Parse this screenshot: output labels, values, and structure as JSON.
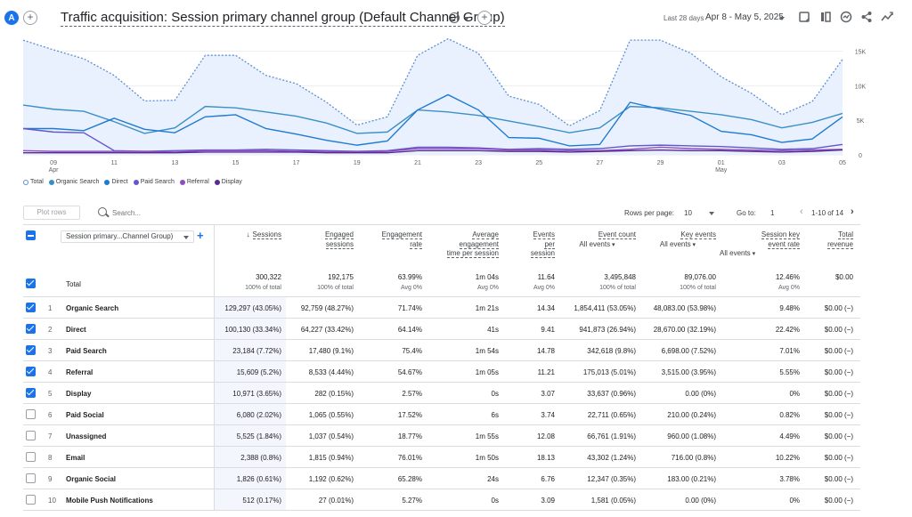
{
  "header": {
    "avatar_letter": "A",
    "title": "Traffic acquisition: Session primary channel group (Default Channel Group)",
    "date_label": "Last 28 days",
    "date_range": "Apr 8 - May 5, 2025",
    "icons": [
      "add-icon",
      "check-circle-icon",
      "chevron-down-icon",
      "add-comparison-icon",
      "report-icon",
      "compare-columns-icon",
      "insights-icon",
      "share-icon",
      "trend-icon"
    ]
  },
  "chart_data": {
    "type": "line",
    "x": [
      "Apr 8",
      "Apr 9",
      "Apr 10",
      "Apr 11",
      "Apr 12",
      "Apr 13",
      "Apr 14",
      "Apr 15",
      "Apr 16",
      "Apr 17",
      "Apr 18",
      "Apr 19",
      "Apr 20",
      "Apr 21",
      "Apr 22",
      "Apr 23",
      "Apr 24",
      "Apr 25",
      "Apr 26",
      "Apr 27",
      "Apr 28",
      "Apr 29",
      "Apr 30",
      "May 1",
      "May 2",
      "May 3",
      "May 4",
      "May 5"
    ],
    "x_tick_labels": [
      "09\nApr",
      "11",
      "13",
      "15",
      "17",
      "19",
      "21",
      "23",
      "25",
      "27",
      "29",
      "01\nMay",
      "03",
      "05"
    ],
    "y_tick_labels": [
      "0",
      "5K",
      "10K",
      "15K"
    ],
    "ylim": [
      0,
      17000
    ],
    "series": [
      {
        "name": "Total",
        "color": "#5b8fd6",
        "values": [
          16600,
          15200,
          13900,
          11500,
          7800,
          7900,
          14400,
          14400,
          11500,
          10300,
          7600,
          4300,
          5500,
          14400,
          16800,
          14700,
          8500,
          7300,
          4200,
          6400,
          16600,
          16600,
          14700,
          11300,
          8900,
          5800,
          7700,
          13800
        ]
      },
      {
        "name": "Organic Search",
        "color": "#3a8fc7",
        "values": [
          7200,
          6600,
          6300,
          4800,
          3100,
          3900,
          7000,
          6800,
          6200,
          5600,
          4600,
          3100,
          3300,
          6500,
          6200,
          5700,
          4900,
          4100,
          3200,
          3900,
          7000,
          6800,
          6300,
          5800,
          5100,
          3900,
          4700,
          6000
        ]
      },
      {
        "name": "Direct",
        "color": "#1f7ad1",
        "values": [
          3800,
          3800,
          3500,
          5300,
          3700,
          3200,
          5500,
          5800,
          3800,
          3000,
          2100,
          1400,
          2000,
          6500,
          8700,
          6500,
          2500,
          2400,
          1300,
          1500,
          7600,
          6600,
          5700,
          3400,
          2900,
          1800,
          2300,
          5500
        ]
      },
      {
        "name": "Paid Search",
        "color": "#6357c9",
        "values": [
          3800,
          3300,
          3200,
          600,
          500,
          600,
          700,
          700,
          800,
          700,
          600,
          500,
          600,
          1100,
          1100,
          1000,
          800,
          900,
          800,
          900,
          1300,
          1400,
          1300,
          1200,
          1000,
          800,
          900,
          1500
        ]
      },
      {
        "name": "Referral",
        "color": "#8b4fc2",
        "values": [
          600,
          500,
          500,
          500,
          500,
          400,
          600,
          600,
          600,
          500,
          500,
          400,
          500,
          900,
          900,
          900,
          700,
          700,
          600,
          600,
          800,
          1100,
          900,
          800,
          700,
          600,
          700,
          800
        ]
      },
      {
        "name": "Display",
        "color": "#5c2a8f",
        "values": [
          300,
          300,
          300,
          300,
          300,
          300,
          400,
          400,
          400,
          400,
          300,
          300,
          300,
          600,
          600,
          600,
          500,
          500,
          400,
          500,
          600,
          700,
          600,
          600,
          500,
          400,
          500,
          700
        ]
      }
    ]
  },
  "controls": {
    "plot_rows": "Plot rows",
    "search_placeholder": "Search...",
    "rows_per_page_label": "Rows per page:",
    "rows_per_page_value": "10",
    "goto_label": "Go to:",
    "goto_value": "1",
    "page_range": "1-10 of 14"
  },
  "table": {
    "dimension": "Session primary...Channel Group)",
    "columns": [
      {
        "l1": "Sessions",
        "l2": "",
        "l3": "",
        "sort": "↓"
      },
      {
        "l1": "Engaged",
        "l2": "sessions",
        "l3": ""
      },
      {
        "l1": "Engagement",
        "l2": "rate",
        "l3": ""
      },
      {
        "l1": "Average",
        "l2": "engagement",
        "l3": "time per session"
      },
      {
        "l1": "Events",
        "l2": "per",
        "l3": "session"
      },
      {
        "l1": "Event count",
        "l2": "All events",
        "l3": ""
      },
      {
        "l1": "Key events",
        "l2": "All events",
        "l3": ""
      },
      {
        "l1": "Session key",
        "l2": "event rate",
        "l3": "All events"
      },
      {
        "l1": "Total",
        "l2": "revenue",
        "l3": ""
      }
    ],
    "total_label": "Total",
    "totals": [
      {
        "v": "300,322",
        "s": "100% of total"
      },
      {
        "v": "192,175",
        "s": "100% of total"
      },
      {
        "v": "63.99%",
        "s": "Avg 0%"
      },
      {
        "v": "1m 04s",
        "s": "Avg 0%"
      },
      {
        "v": "11.64",
        "s": "Avg 0%"
      },
      {
        "v": "3,495,848",
        "s": "100% of total"
      },
      {
        "v": "89,076.00",
        "s": "100% of total"
      },
      {
        "v": "12.46%",
        "s": "Avg 0%"
      },
      {
        "v": "$0.00",
        "s": ""
      }
    ],
    "rows": [
      {
        "n": "1",
        "name": "Organic Search",
        "checked": true,
        "cells": [
          "129,297 (43.05%)",
          "92,759 (48.27%)",
          "71.74%",
          "1m 21s",
          "14.34",
          "1,854,411 (53.05%)",
          "48,083.00 (53.98%)",
          "9.48%",
          "$0.00 (−)"
        ]
      },
      {
        "n": "2",
        "name": "Direct",
        "checked": true,
        "cells": [
          "100,130 (33.34%)",
          "64,227 (33.42%)",
          "64.14%",
          "41s",
          "9.41",
          "941,873 (26.94%)",
          "28,670.00 (32.19%)",
          "22.42%",
          "$0.00 (−)"
        ]
      },
      {
        "n": "3",
        "name": "Paid Search",
        "checked": true,
        "cells": [
          "23,184 (7.72%)",
          "17,480 (9.1%)",
          "75.4%",
          "1m 54s",
          "14.78",
          "342,618 (9.8%)",
          "6,698.00 (7.52%)",
          "7.01%",
          "$0.00 (−)"
        ]
      },
      {
        "n": "4",
        "name": "Referral",
        "checked": true,
        "cells": [
          "15,609 (5.2%)",
          "8,533 (4.44%)",
          "54.67%",
          "1m 05s",
          "11.21",
          "175,013 (5.01%)",
          "3,515.00 (3.95%)",
          "5.55%",
          "$0.00 (−)"
        ]
      },
      {
        "n": "5",
        "name": "Display",
        "checked": true,
        "cells": [
          "10,971 (3.65%)",
          "282 (0.15%)",
          "2.57%",
          "0s",
          "3.07",
          "33,637 (0.96%)",
          "0.00 (0%)",
          "0%",
          "$0.00 (−)"
        ]
      },
      {
        "n": "6",
        "name": "Paid Social",
        "checked": false,
        "cells": [
          "6,080 (2.02%)",
          "1,065 (0.55%)",
          "17.52%",
          "6s",
          "3.74",
          "22,711 (0.65%)",
          "210.00 (0.24%)",
          "0.82%",
          "$0.00 (−)"
        ]
      },
      {
        "n": "7",
        "name": "Unassigned",
        "checked": false,
        "cells": [
          "5,525 (1.84%)",
          "1,037 (0.54%)",
          "18.77%",
          "1m 55s",
          "12.08",
          "66,761 (1.91%)",
          "960.00 (1.08%)",
          "4.49%",
          "$0.00 (−)"
        ]
      },
      {
        "n": "8",
        "name": "Email",
        "checked": false,
        "cells": [
          "2,388 (0.8%)",
          "1,815 (0.94%)",
          "76.01%",
          "1m 50s",
          "18.13",
          "43,302 (1.24%)",
          "716.00 (0.8%)",
          "10.22%",
          "$0.00 (−)"
        ]
      },
      {
        "n": "9",
        "name": "Organic Social",
        "checked": false,
        "cells": [
          "1,826 (0.61%)",
          "1,192 (0.62%)",
          "65.28%",
          "24s",
          "6.76",
          "12,347 (0.35%)",
          "183.00 (0.21%)",
          "3.78%",
          "$0.00 (−)"
        ]
      },
      {
        "n": "10",
        "name": "Mobile Push Notifications",
        "checked": false,
        "cells": [
          "512 (0.17%)",
          "27 (0.01%)",
          "5.27%",
          "0s",
          "3.09",
          "1,581 (0.05%)",
          "0.00 (0%)",
          "0%",
          "$0.00 (−)"
        ]
      }
    ]
  }
}
